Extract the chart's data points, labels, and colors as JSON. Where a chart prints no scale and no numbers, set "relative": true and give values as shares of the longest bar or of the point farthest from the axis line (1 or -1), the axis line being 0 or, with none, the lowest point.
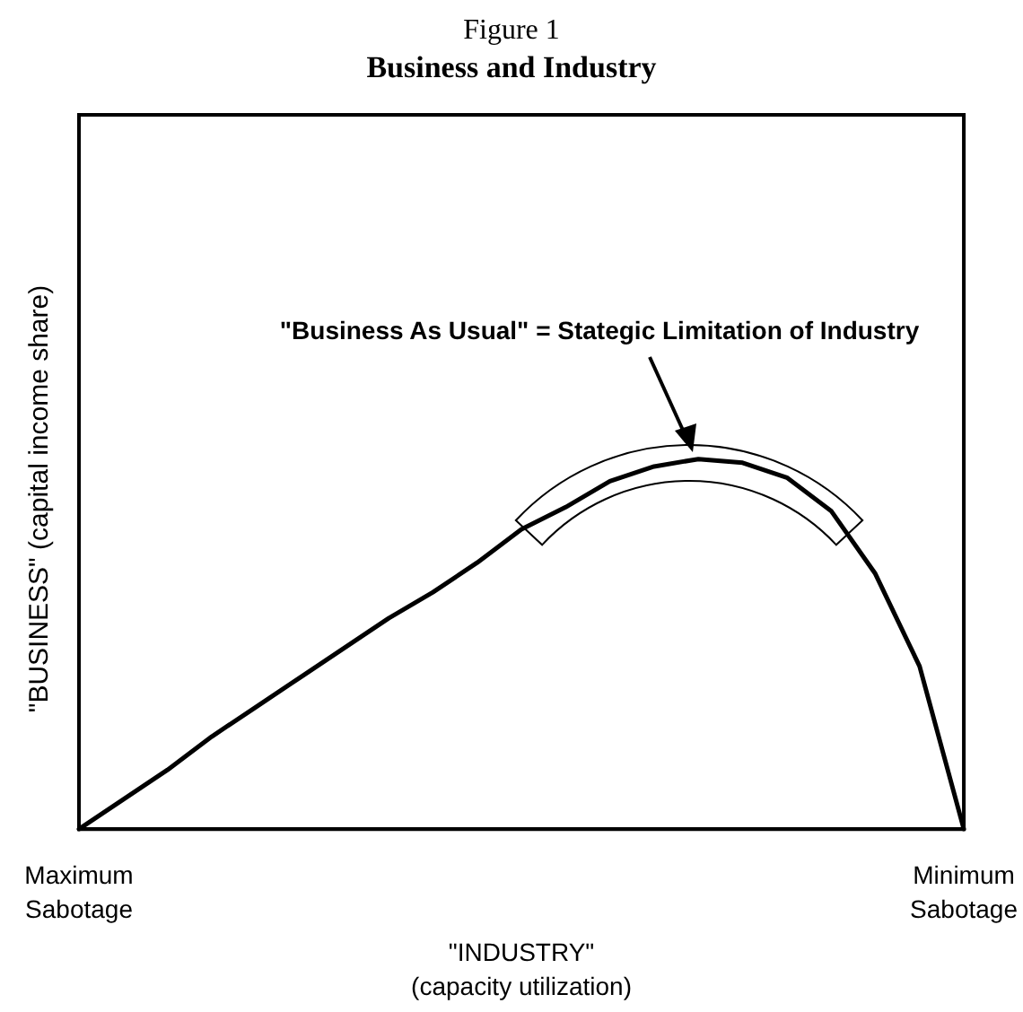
{
  "chart_data": {
    "type": "line",
    "title": "Figure 1",
    "subtitle": "Business and Industry",
    "xlabel": "\"INDUSTRY\"\n(capacity utilization)",
    "ylabel": "\"BUSINESS\" (capital income share)",
    "categories": [
      "Maximum\nSabotage",
      null,
      null,
      null,
      null,
      null,
      null,
      null,
      null,
      null,
      null,
      null,
      null,
      null,
      null,
      null,
      null,
      null,
      null,
      null,
      "Minimum\nSabotage"
    ],
    "series": [
      {
        "color": "#000000",
        "values": [
          0,
          0.08,
          0.16,
          0.25,
          0.33,
          0.41,
          0.49,
          0.57,
          0.64,
          0.72,
          0.81,
          0.87,
          0.94,
          0.98,
          1.0,
          0.99,
          0.95,
          0.86,
          0.69,
          0.44,
          0
        ]
      }
    ],
    "relative": true,
    "grid": false,
    "marker": "none",
    "line_style": "solid",
    "annotations": [
      "\"Business As Usual\" = Stategic Limitation of Industry"
    ]
  }
}
